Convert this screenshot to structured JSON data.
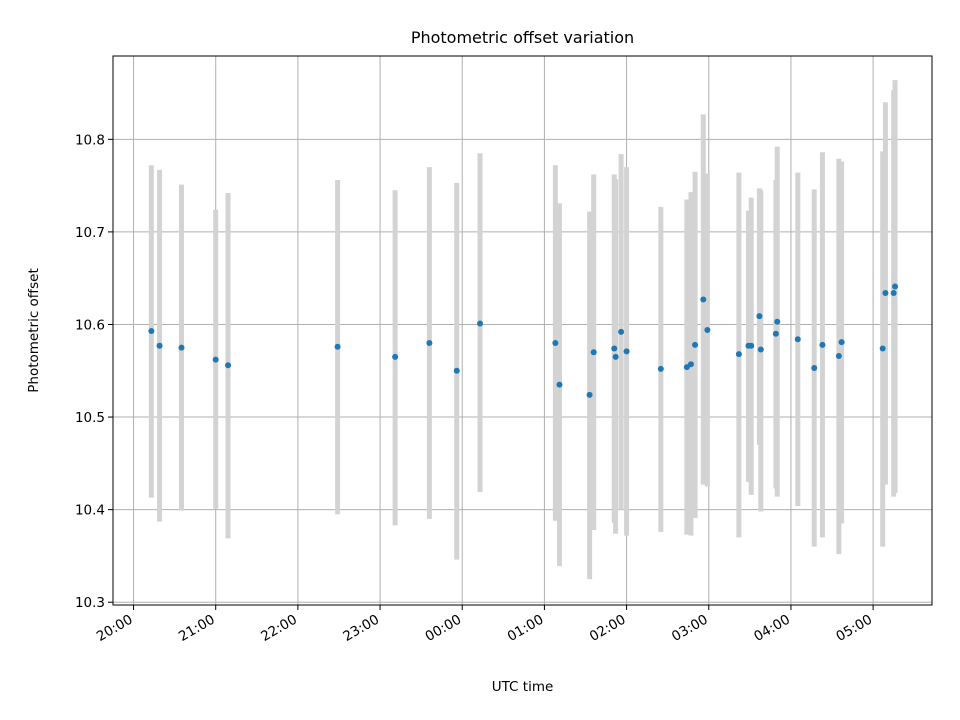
{
  "chart_data": {
    "type": "scatter",
    "title": "Photometric offset variation",
    "xlabel": "UTC time",
    "ylabel": "Photometric offset",
    "xlim": [
      "19:45",
      "05:43"
    ],
    "ylim": [
      10.297,
      10.89
    ],
    "grid": true,
    "x_ticks": [
      "20:00",
      "21:00",
      "22:00",
      "23:00",
      "00:00",
      "01:00",
      "02:00",
      "03:00",
      "04:00",
      "05:00"
    ],
    "y_ticks": [
      "10.3",
      "10.4",
      "10.5",
      "10.6",
      "10.7",
      "10.8"
    ],
    "marker_color": "#1f77b4",
    "errorbar_color": "#d3d3d3",
    "points": [
      {
        "x": "20:13",
        "y": 10.593,
        "err_low": 10.413,
        "err_high": 10.772
      },
      {
        "x": "20:19",
        "y": 10.577,
        "err_low": 10.387,
        "err_high": 10.767
      },
      {
        "x": "20:35",
        "y": 10.575,
        "err_low": 10.399,
        "err_high": 10.751
      },
      {
        "x": "21:00",
        "y": 10.562,
        "err_low": 10.401,
        "err_high": 10.724
      },
      {
        "x": "21:09",
        "y": 10.556,
        "err_low": 10.369,
        "err_high": 10.742
      },
      {
        "x": "22:29",
        "y": 10.576,
        "err_low": 10.395,
        "err_high": 10.756
      },
      {
        "x": "23:11",
        "y": 10.565,
        "err_low": 10.383,
        "err_high": 10.745
      },
      {
        "x": "23:36",
        "y": 10.58,
        "err_low": 10.39,
        "err_high": 10.77
      },
      {
        "x": "23:56",
        "y": 10.55,
        "err_low": 10.346,
        "err_high": 10.753
      },
      {
        "x": "00:13",
        "y": 10.601,
        "err_low": 10.419,
        "err_high": 10.785
      },
      {
        "x": "01:08",
        "y": 10.58,
        "err_low": 10.388,
        "err_high": 10.772
      },
      {
        "x": "01:11",
        "y": 10.535,
        "err_low": 10.339,
        "err_high": 10.731
      },
      {
        "x": "01:33",
        "y": 10.524,
        "err_low": 10.325,
        "err_high": 10.722
      },
      {
        "x": "01:36",
        "y": 10.57,
        "err_low": 10.378,
        "err_high": 10.762
      },
      {
        "x": "01:51",
        "y": 10.574,
        "err_low": 10.386,
        "err_high": 10.762
      },
      {
        "x": "01:52",
        "y": 10.565,
        "err_low": 10.374,
        "err_high": 10.757
      },
      {
        "x": "01:56",
        "y": 10.592,
        "err_low": 10.4,
        "err_high": 10.784
      },
      {
        "x": "02:00",
        "y": 10.571,
        "err_low": 10.372,
        "err_high": 10.77
      },
      {
        "x": "02:25",
        "y": 10.552,
        "err_low": 10.376,
        "err_high": 10.727
      },
      {
        "x": "02:44",
        "y": 10.554,
        "err_low": 10.373,
        "err_high": 10.735
      },
      {
        "x": "02:47",
        "y": 10.557,
        "err_low": 10.372,
        "err_high": 10.743
      },
      {
        "x": "02:50",
        "y": 10.578,
        "err_low": 10.391,
        "err_high": 10.765
      },
      {
        "x": "02:56",
        "y": 10.627,
        "err_low": 10.427,
        "err_high": 10.827
      },
      {
        "x": "02:59",
        "y": 10.594,
        "err_low": 10.425,
        "err_high": 10.763
      },
      {
        "x": "03:22",
        "y": 10.568,
        "err_low": 10.37,
        "err_high": 10.764
      },
      {
        "x": "03:29",
        "y": 10.577,
        "err_low": 10.43,
        "err_high": 10.723
      },
      {
        "x": "03:31",
        "y": 10.577,
        "err_low": 10.416,
        "err_high": 10.737
      },
      {
        "x": "03:37",
        "y": 10.609,
        "err_low": 10.47,
        "err_high": 10.747
      },
      {
        "x": "03:38",
        "y": 10.573,
        "err_low": 10.398,
        "err_high": 10.745
      },
      {
        "x": "03:49",
        "y": 10.59,
        "err_low": 10.423,
        "err_high": 10.756
      },
      {
        "x": "03:50",
        "y": 10.603,
        "err_low": 10.414,
        "err_high": 10.792
      },
      {
        "x": "04:05",
        "y": 10.584,
        "err_low": 10.404,
        "err_high": 10.764
      },
      {
        "x": "04:17",
        "y": 10.553,
        "err_low": 10.36,
        "err_high": 10.746
      },
      {
        "x": "04:23",
        "y": 10.578,
        "err_low": 10.37,
        "err_high": 10.786
      },
      {
        "x": "04:35",
        "y": 10.566,
        "err_low": 10.352,
        "err_high": 10.779
      },
      {
        "x": "04:37",
        "y": 10.581,
        "err_low": 10.385,
        "err_high": 10.776
      },
      {
        "x": "05:07",
        "y": 10.574,
        "err_low": 10.36,
        "err_high": 10.787
      },
      {
        "x": "05:09",
        "y": 10.634,
        "err_low": 10.427,
        "err_high": 10.84
      },
      {
        "x": "05:15",
        "y": 10.634,
        "err_low": 10.414,
        "err_high": 10.853
      },
      {
        "x": "05:16",
        "y": 10.641,
        "err_low": 10.418,
        "err_high": 10.864
      }
    ]
  }
}
